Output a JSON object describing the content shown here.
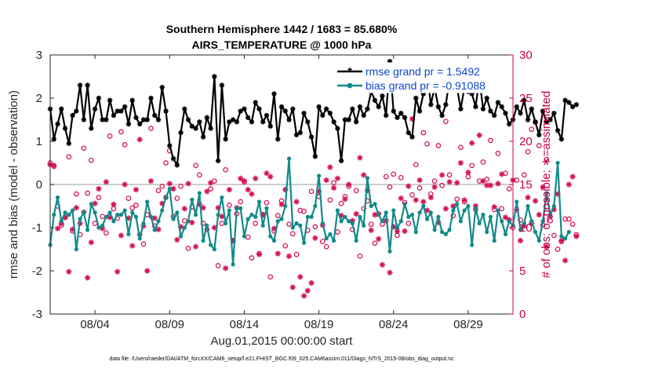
{
  "chart_data": {
    "type": "line",
    "title": "Southern Hemisphere 1442 / 1683 = 85.680%",
    "subtitle": "AIRS_TEMPERATURE @ 1000 hPa",
    "xlabel": "Aug.01,2015 00:00:00 start",
    "ylabel": "rmse and bias (model - observation)",
    "y2label": "# of obs: o=possible; ∗=assimilated",
    "footnote": "data file: /Users/raeder/DAI/ATM_forcXX/CAM6_setup/f.e21.FHIST_BGC.f09_025.CAM6assim.011/Diags_NTrS_2015-08/obs_diag_output.nc",
    "x_start_day": 1,
    "x_step_days": 0.25,
    "xlim_days": [
      1,
      32
    ],
    "xticks": [
      {
        "day": 4,
        "label": "08/04"
      },
      {
        "day": 9,
        "label": "08/09"
      },
      {
        "day": 14,
        "label": "08/14"
      },
      {
        "day": 19,
        "label": "08/19"
      },
      {
        "day": 24,
        "label": "08/24"
      },
      {
        "day": 29,
        "label": "08/29"
      }
    ],
    "ylim": [
      -3,
      3
    ],
    "yticks": [
      -3,
      -2,
      -1,
      0,
      1,
      2,
      3
    ],
    "y2lim": [
      0,
      30
    ],
    "y2ticks": [
      0,
      5,
      10,
      15,
      20,
      25,
      30
    ],
    "colors": {
      "rmse": "#000000",
      "bias": "#128a8a",
      "obs": "#d4145a",
      "zero_line": "#bdbdbd",
      "legend_text": "#0b48cc",
      "right_axis": "#c8004b"
    },
    "legend": {
      "placement": "top-right",
      "entries": [
        "rmse grand pr = 1.5492",
        "bias grand pr = -0.91088"
      ]
    },
    "series": [
      {
        "name": "rmse",
        "axis": "left",
        "marker": "star",
        "values": [
          1.75,
          1.05,
          1.4,
          1.75,
          1.3,
          0.95,
          1.6,
          1.7,
          2.3,
          1.5,
          2.3,
          1.3,
          1.75,
          2.0,
          1.5,
          1.5,
          1.95,
          1.6,
          1.7,
          1.7,
          1.8,
          1.4,
          1.95,
          1.55,
          1.4,
          1.5,
          1.5,
          2.0,
          1.6,
          1.5,
          2.25,
          1.7,
          0.9,
          0.6,
          0.45,
          1.2,
          1.75,
          1.5,
          1.35,
          1.3,
          1.45,
          1.1,
          1.55,
          1.3,
          2.5,
          0.55,
          2.3,
          1.05,
          1.45,
          1.5,
          1.45,
          1.7,
          1.75,
          1.55,
          1.45,
          1.9,
          1.75,
          1.45,
          1.6,
          1.35,
          2.1,
          1.05,
          1.8,
          1.7,
          1.5,
          1.75,
          1.15,
          1.2,
          1.65,
          1.45,
          1.1,
          0.65,
          1.8,
          1.6,
          1.75,
          1.65,
          1.45,
          1.3,
          0.55,
          1.5,
          1.5,
          1.75,
          1.45,
          1.8,
          1.6,
          1.75,
          2.15,
          1.95,
          1.8,
          2.05,
          1.6,
          2.85,
          1.7,
          1.55,
          1.65,
          1.55,
          1.2,
          1.1,
          2.0,
          1.7,
          2.1,
          2.6,
          1.85,
          2.25,
          1.8,
          1.6,
          1.85,
          2.45,
          2.2,
          2.25,
          1.75,
          2.25,
          2.15,
          2.1,
          1.8,
          2.45,
          1.75,
          2.0,
          1.7,
          1.6,
          1.9,
          1.8,
          1.65,
          1.4,
          1.5,
          1.8,
          1.65,
          1.95,
          1.5,
          1.75,
          1.45,
          1.15,
          1.7,
          1.45,
          1.5,
          1.65,
          1.25,
          1.05,
          1.95,
          1.9,
          1.8,
          1.85
        ]
      },
      {
        "name": "bias",
        "axis": "left",
        "marker": "dot",
        "values": [
          -1.4,
          -0.7,
          -0.3,
          -0.85,
          -0.65,
          -0.7,
          -0.6,
          -1.5,
          -0.8,
          -0.65,
          -1.05,
          -0.45,
          -0.65,
          -1.0,
          -0.95,
          -0.75,
          -0.65,
          -0.85,
          -0.7,
          -0.7,
          -0.6,
          -1.15,
          -0.65,
          -0.75,
          -1.25,
          -0.9,
          -0.4,
          -0.75,
          -1.05,
          -0.85,
          -0.6,
          -0.3,
          -0.1,
          -0.8,
          -0.65,
          -1.2,
          -1.0,
          -0.85,
          -0.35,
          -0.7,
          -0.2,
          -1.3,
          -0.95,
          -1.4,
          -1.5,
          -0.7,
          -0.3,
          -0.9,
          -0.6,
          -1.85,
          -0.55,
          -0.55,
          -1.2,
          -0.8,
          -0.7,
          -0.75,
          -0.4,
          -0.95,
          -0.55,
          -1.2,
          -1.3,
          -0.85,
          -0.8,
          -0.5,
          0.6,
          -1.0,
          -0.9,
          -0.95,
          -1.35,
          -0.75,
          -0.75,
          -0.5,
          0.2,
          -0.9,
          -1.25,
          -1.15,
          -1.3,
          -0.6,
          -0.85,
          -0.75,
          -0.85,
          -0.9,
          -1.3,
          -0.75,
          -0.95,
          0.15,
          -0.5,
          -0.45,
          -0.7,
          -0.85,
          -0.65,
          -1.55,
          -0.6,
          -1.0,
          -0.85,
          -0.45,
          -0.75,
          -0.7,
          -1.1,
          -0.65,
          -0.5,
          -0.8,
          -0.65,
          -1.05,
          -0.75,
          -1.1,
          -1.15,
          -1.05,
          -0.6,
          -0.45,
          -0.85,
          -0.6,
          -0.5,
          -1.4,
          -0.55,
          -0.9,
          -0.7,
          -1.1,
          -0.75,
          -1.3,
          -0.6,
          -0.85,
          -1.15,
          -0.85,
          -0.95,
          -0.4,
          -1.05,
          -0.9,
          -0.5,
          -0.85,
          -1.1,
          -1.3,
          -0.85,
          -0.2,
          -0.7,
          -0.5,
          0.5,
          -1.2,
          -1.25,
          -1.1
        ]
      },
      {
        "name": "obs_possible",
        "axis": "right",
        "marker": "circle",
        "values": [
          17.5,
          17.1,
          12.5,
          10.3,
          11.2,
          18.2,
          9.6,
          13.9,
          9.2,
          19.2,
          14.0,
          17.8,
          10.5,
          13.5,
          11.3,
          9.4,
          20.6,
          12.2,
          11.1,
          21.1,
          19.6,
          13.4,
          12.3,
          12.6,
          9.2,
          8.1,
          11.5,
          21.5,
          10.2,
          14.3,
          14.8,
          17.5,
          18.9,
          11.3,
          13.4,
          14.8,
          10.8,
          7.6,
          12.4,
          17.2,
          16.1,
          10.5,
          9.8,
          14.5,
          15.4,
          5.6,
          10.5,
          16.7,
          12.6,
          8.5,
          11.6,
          13.0,
          15.3,
          8.9,
          6.5,
          10.5,
          7.0,
          11.5,
          12.9,
          4.3,
          9.6,
          11.4,
          13.1,
          7.9,
          10.4,
          9.3,
          6.9,
          12.0,
          11.9,
          9.7,
          14.2,
          10.1,
          13.6,
          8.4,
          7.8,
          13.2,
          15.2,
          9.5,
          12.8,
          13.6,
          14.8,
          9.8,
          14.3,
          6.7,
          12.2,
          13.1,
          10.4,
          8.2,
          11.6,
          10.4,
          15.9,
          14.7,
          16.2,
          9.1,
          15.8,
          12.9,
          10.5,
          13.8,
          17.3,
          14.6,
          21.0,
          19.7,
          13.9,
          15.4,
          19.5,
          14.9,
          22.3,
          16.1,
          11.4,
          13.3,
          19.3,
          13.0,
          15.9,
          17.2,
          12.1,
          15.4,
          17.6,
          15.6,
          20.1,
          12.1,
          18.6,
          12.2,
          16.3,
          14.5,
          10.0,
          15.5,
          10.9,
          16.1,
          18.8,
          21.4,
          22.2,
          19.5,
          10.3,
          17.9,
          10.8,
          9.1,
          7.5,
          8.4,
          11.0,
          11.0,
          10.4,
          9.2
        ]
      },
      {
        "name": "obs_assimilated",
        "axis": "right",
        "marker": "star",
        "values": [
          17.3,
          17.2,
          9.9,
          10.5,
          11.2,
          4.9,
          9.8,
          12.3,
          10.5,
          11.8,
          4.2,
          8.3,
          12.8,
          14.5,
          9.9,
          15.3,
          11.2,
          12.7,
          4.9,
          9.1,
          15.0,
          11.1,
          7.9,
          14.4,
          20.2,
          10.2,
          5.0,
          15.4,
          11.1,
          9.8,
          12.8,
          13.5,
          15.1,
          14.5,
          8.6,
          10.1,
          12.2,
          15.1,
          10.6,
          7.8,
          12.7,
          12.3,
          14.2,
          15.2,
          10.0,
          12.3,
          11.3,
          5.3,
          14.4,
          8.5,
          12.3,
          15.7,
          15.4,
          14.4,
          13.9,
          15.7,
          6.9,
          11.5,
          16.3,
          15.9,
          9.9,
          7.0,
          12.7,
          14.4,
          6.7,
          3.1,
          13.0,
          4.3,
          2.1,
          2.7,
          3.6,
          8.8,
          14.2,
          10.3,
          15.5,
          17.0,
          14.6,
          15.7,
          11.4,
          13.3,
          15.0,
          10.8,
          11.6,
          18.1,
          16.1,
          14.3,
          9.7,
          11.5,
          8.7,
          5.7,
          10.8,
          4.8,
          10.1,
          9.6,
          13.4,
          9.6,
          14.8,
          22.6,
          13.2,
          15.5,
          13.0,
          12.0,
          13.5,
          14.7,
          10.6,
          16.1,
          12.2,
          15.3,
          12.5,
          15.2,
          17.5,
          13.2,
          16.4,
          19.8,
          12.5,
          20.7,
          15.4,
          14.9,
          14.9,
          12.4,
          15.1,
          16.2,
          11.2,
          10.9,
          15.5,
          12.1,
          8.5,
          10.2,
          13.5,
          10.5,
          13.1,
          11.5,
          14.7,
          7.8,
          11.3,
          12.1,
          13.9,
          8.5,
          6.2,
          15.0,
          15.9,
          9.0
        ]
      }
    ]
  }
}
